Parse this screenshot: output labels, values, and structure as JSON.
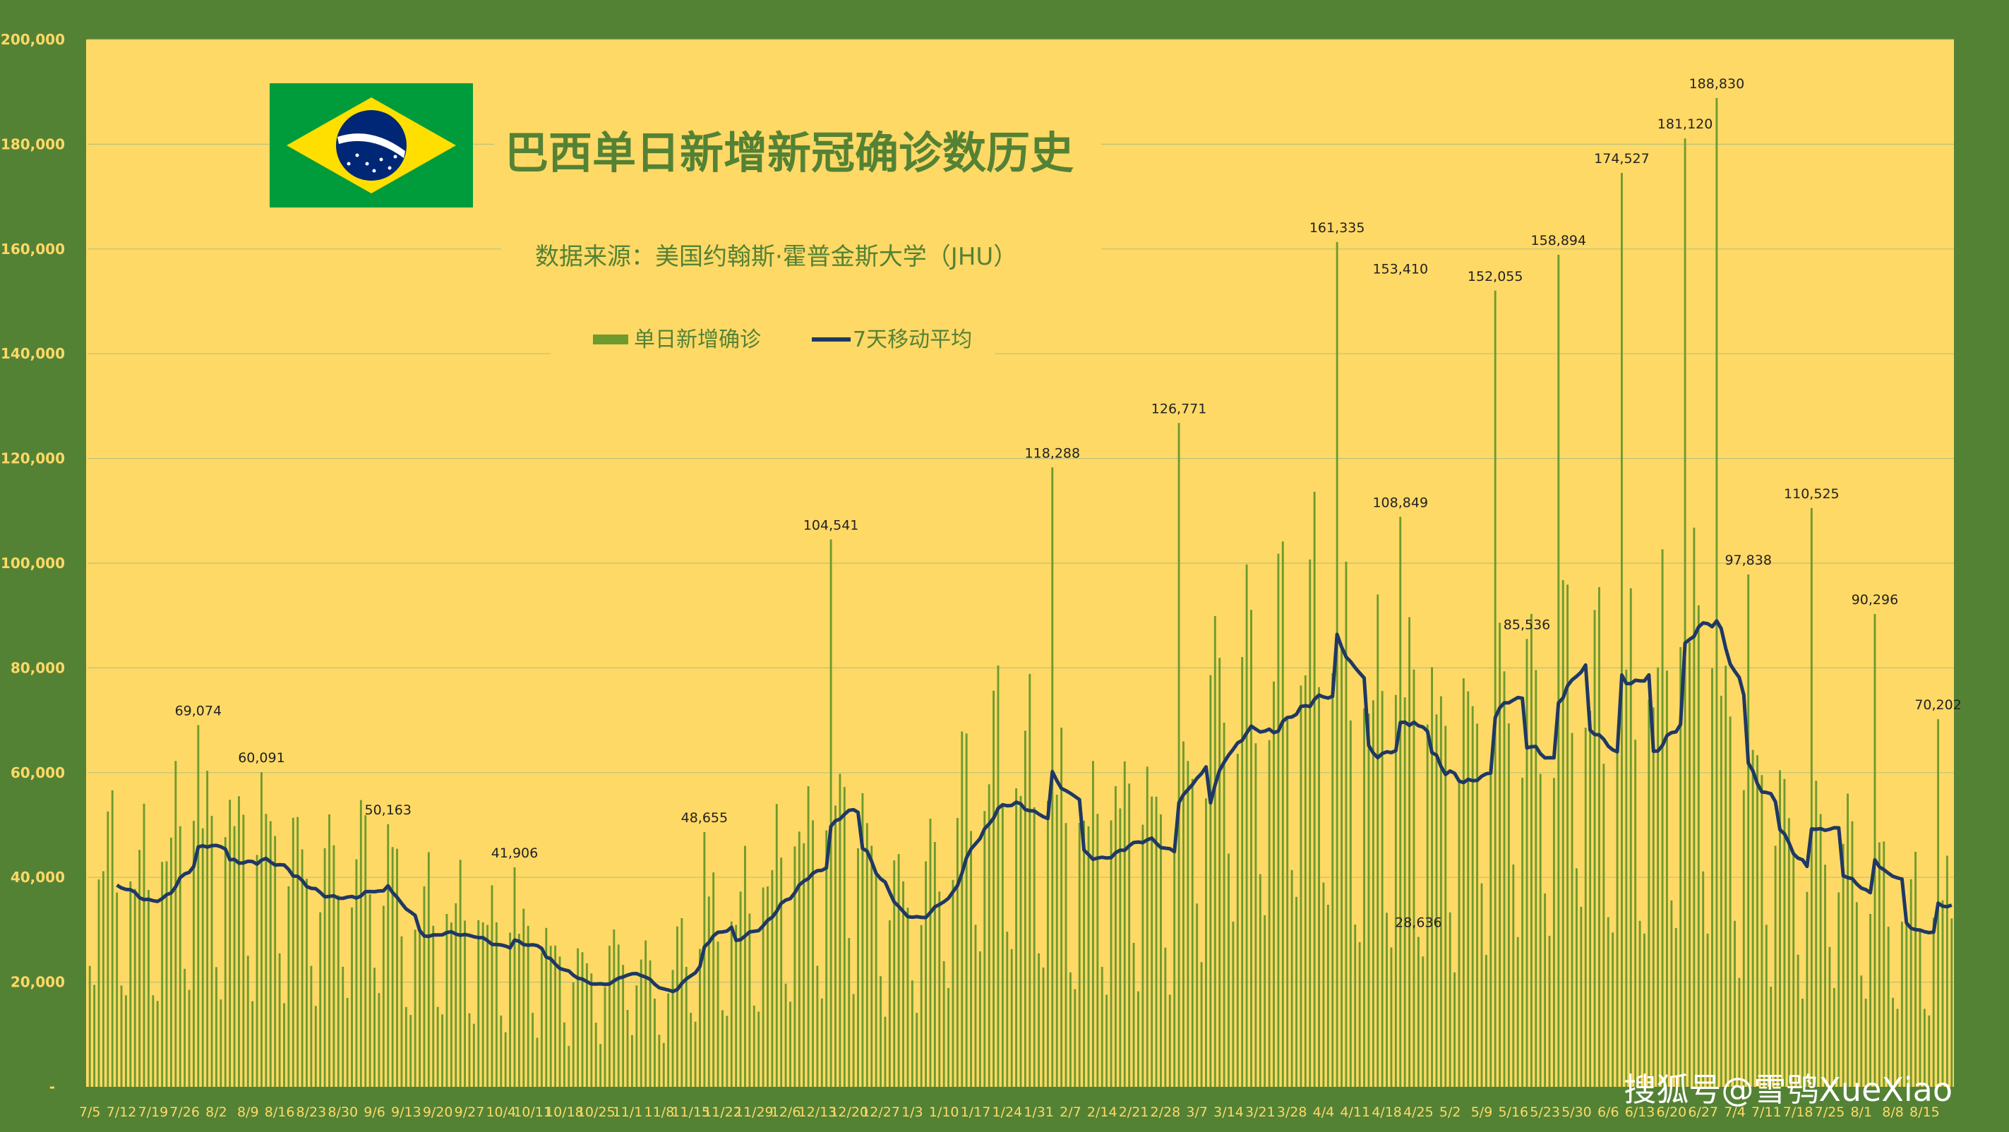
{
  "chart_data": {
    "type": "bar",
    "title": "巴西单日新增新冠确诊数历史",
    "subtitle": "数据来源：美国约翰斯·霍普金斯大学（JHU）",
    "series": [
      {
        "name": "单日新增确诊",
        "kind": "bar",
        "color": "#6E9A2E"
      },
      {
        "name": "7天移动平均",
        "kind": "line",
        "color": "#1F3864"
      }
    ],
    "ylim": [
      0,
      200000
    ],
    "yticks": [
      "-",
      "20,000",
      "40,000",
      "60,000",
      "80,000",
      "100,000",
      "120,000",
      "140,000",
      "160,000",
      "180,000",
      "200,000"
    ],
    "x_tick_labels": [
      "7/5",
      "7/12",
      "7/19",
      "7/26",
      "8/2",
      "8/9",
      "8/16",
      "8/23",
      "8/30",
      "9/6",
      "9/13",
      "9/20",
      "9/27",
      "10/4",
      "10/11",
      "10/18",
      "10/25",
      "11/1",
      "11/8",
      "11/15",
      "11/22",
      "11/29",
      "12/6",
      "12/13",
      "12/20",
      "12/27",
      "1/3",
      "1/10",
      "1/17",
      "1/24",
      "1/31",
      "2/7",
      "2/14",
      "2/21",
      "2/28",
      "3/7",
      "3/14",
      "3/21",
      "3/28",
      "4/4",
      "4/11",
      "4/18",
      "4/25",
      "5/2",
      "5/9",
      "5/16",
      "5/23",
      "5/30",
      "6/6",
      "6/13",
      "6/20",
      "6/27",
      "7/4",
      "7/11",
      "7/18",
      "7/25",
      "8/1",
      "8/8",
      "8/15"
    ],
    "weekly_avg": [
      42000,
      38000,
      36000,
      46000,
      44000,
      44500,
      42500,
      37500,
      38000,
      40000,
      29000,
      31000,
      29000,
      27000,
      26000,
      21000,
      20000,
      24000,
      17000,
      26000,
      29000,
      32000,
      40000,
      44000,
      50000,
      35000,
      33000,
      40000,
      55000,
      57000,
      52000,
      45000,
      45000,
      50000,
      45000,
      57000,
      73000,
      70000,
      77000,
      78000,
      64000,
      67000,
      68000,
      58000,
      64000,
      69000,
      62000,
      75000,
      63000,
      65000,
      73000,
      80000,
      57000,
      52000,
      41000,
      44000,
      37000,
      32000,
      30000
    ],
    "weekly_pattern": [
      0.55,
      0.42,
      1.0,
      1.15,
      1.25,
      1.32,
      1.05
    ],
    "labeled_points": [
      {
        "x": "7/26",
        "value": 69074,
        "label": "69,074"
      },
      {
        "x": "8/9",
        "value": 60091,
        "label": "60,091"
      },
      {
        "x": "9/6",
        "value": 50163,
        "label": "50,163"
      },
      {
        "x": "10/4",
        "value": 41906,
        "label": "41,906"
      },
      {
        "x": "11/15",
        "value": 48655,
        "label": "48,655"
      },
      {
        "x": "12/13",
        "value": 104541,
        "label": "104,541"
      },
      {
        "x": "1/31",
        "value": 118288,
        "label": "118,288"
      },
      {
        "x": "2/28",
        "value": 126771,
        "label": "126,771"
      },
      {
        "x": "4/4",
        "value": 161335,
        "label": "161,335"
      },
      {
        "x": "4/18",
        "value": 153410,
        "label": "153,410"
      },
      {
        "x": "4/18",
        "value": 108849,
        "label": "108,849"
      },
      {
        "x": "4/25",
        "value": 28636,
        "label": "28,636"
      },
      {
        "x": "5/9",
        "value": 152055,
        "label": "152,055"
      },
      {
        "x": "5/16",
        "value": 85536,
        "label": "85,536"
      },
      {
        "x": "5/23",
        "value": 158894,
        "label": "158,894"
      },
      {
        "x": "6/6",
        "value": 174527,
        "label": "174,527"
      },
      {
        "x": "6/20",
        "value": 181120,
        "label": "181,120"
      },
      {
        "x": "6/27",
        "value": 188830,
        "label": "188,830"
      },
      {
        "x": "7/4",
        "value": 97838,
        "label": "97,838"
      },
      {
        "x": "7/18",
        "value": 110525,
        "label": "110,525"
      },
      {
        "x": "8/1",
        "value": 90296,
        "label": "90,296"
      },
      {
        "x": "8/15",
        "value": 70202,
        "label": "70,202"
      }
    ],
    "grid": true,
    "legend_position": "top-center"
  },
  "colors": {
    "background": "#548235",
    "plot_background": "#FFD966",
    "bars": "#6E9A2E",
    "line": "#1F3864",
    "title": "#548235",
    "tick_text": "#FFD966"
  },
  "flag": {
    "icon": "brazil-flag-icon"
  },
  "watermark": "搜狐号@雪鸮XueXiao"
}
